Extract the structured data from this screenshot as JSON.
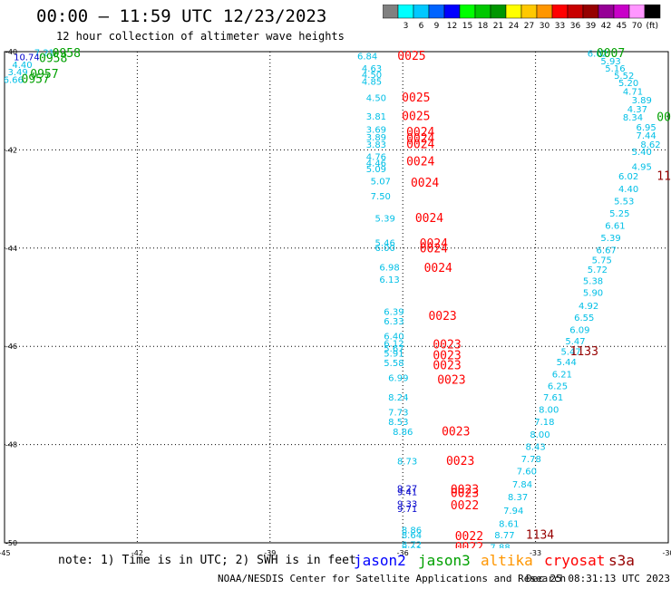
{
  "header": {
    "title": "00:00 — 11:59 UTC 12/23/2023",
    "subtitle": "12 hour collection of altimeter wave heights"
  },
  "colorbar": {
    "unit_label": "(ft)",
    "bins": [
      {
        "label": "",
        "color": "#808080"
      },
      {
        "label": "3",
        "color": "#00ffff"
      },
      {
        "label": "6",
        "color": "#00c8ff"
      },
      {
        "label": "9",
        "color": "#0064ff"
      },
      {
        "label": "12",
        "color": "#0000ff"
      },
      {
        "label": "15",
        "color": "#00ff00"
      },
      {
        "label": "18",
        "color": "#00c800"
      },
      {
        "label": "21",
        "color": "#009600"
      },
      {
        "label": "24",
        "color": "#ffff00"
      },
      {
        "label": "27",
        "color": "#ffc800"
      },
      {
        "label": "30",
        "color": "#ff9600"
      },
      {
        "label": "33",
        "color": "#ff0000"
      },
      {
        "label": "36",
        "color": "#c80000"
      },
      {
        "label": "39",
        "color": "#960000"
      },
      {
        "label": "42",
        "color": "#960096"
      },
      {
        "label": "45",
        "color": "#c800c8"
      },
      {
        "label": "70",
        "color": "#ff96ff"
      },
      {
        "label": "",
        "color": "#000000"
      }
    ]
  },
  "footer": {
    "note": "note: 1) Time is in UTC; 2) SWH is in feet",
    "satellites": [
      {
        "name": "jason2",
        "color": "#0000ff"
      },
      {
        "name": "jason3",
        "color": "#00a000"
      },
      {
        "name": "altika",
        "color": "#ff9600"
      },
      {
        "name": "cryosat",
        "color": "#ff0000"
      },
      {
        "name": "s3a",
        "color": "#960000"
      }
    ],
    "credit": "NOAA/NESDIS Center for Satellite Applications and Research",
    "timestamp": "Dec 25 08:31:13 UTC 2023"
  },
  "chart_data": {
    "type": "scatter",
    "xlim": [
      -45,
      -30
    ],
    "ylim": [
      -50,
      -40
    ],
    "x_ticks": [
      -45,
      -42,
      -39,
      -36,
      -33,
      -30
    ],
    "y_ticks": [
      -40,
      -42,
      -44,
      -46,
      -48,
      -50
    ],
    "grid": true,
    "colors": {
      "swh": "#00bfe6",
      "swh_dark": "#0000cc",
      "cryosat": "#ff0000",
      "jason3": "#00a000",
      "s3a": "#960000"
    },
    "wave_labels": [
      {
        "x": -44.1,
        "y": -40.03,
        "v": "7.21",
        "c": "swh"
      },
      {
        "x": -44.5,
        "y": -40.12,
        "v": "10.74",
        "c": "swh_dark"
      },
      {
        "x": -44.6,
        "y": -40.28,
        "v": "4.40",
        "c": "swh"
      },
      {
        "x": -44.7,
        "y": -40.42,
        "v": "3.49",
        "c": "swh"
      },
      {
        "x": -44.8,
        "y": -40.58,
        "v": "6.66",
        "c": "swh"
      },
      {
        "x": -36.8,
        "y": -40.1,
        "v": "6.84",
        "c": "swh"
      },
      {
        "x": -36.7,
        "y": -40.35,
        "v": "4.63",
        "c": "swh"
      },
      {
        "x": -36.7,
        "y": -40.48,
        "v": "4.50",
        "c": "swh"
      },
      {
        "x": -36.7,
        "y": -40.62,
        "v": "4.85",
        "c": "swh"
      },
      {
        "x": -36.6,
        "y": -40.95,
        "v": "4.50",
        "c": "swh"
      },
      {
        "x": -36.6,
        "y": -41.33,
        "v": "3.81",
        "c": "swh"
      },
      {
        "x": -36.6,
        "y": -41.6,
        "v": "3.69",
        "c": "swh"
      },
      {
        "x": -36.6,
        "y": -41.75,
        "v": "3.89",
        "c": "swh"
      },
      {
        "x": -36.6,
        "y": -41.9,
        "v": "3.83",
        "c": "swh"
      },
      {
        "x": -36.6,
        "y": -42.15,
        "v": "4.76",
        "c": "swh"
      },
      {
        "x": -36.6,
        "y": -42.28,
        "v": "4.46",
        "c": "swh"
      },
      {
        "x": -36.6,
        "y": -42.4,
        "v": "5.09",
        "c": "swh"
      },
      {
        "x": -36.5,
        "y": -42.65,
        "v": "5.07",
        "c": "swh"
      },
      {
        "x": -36.5,
        "y": -42.95,
        "v": "7.50",
        "c": "swh"
      },
      {
        "x": -36.4,
        "y": -43.4,
        "v": "5.39",
        "c": "swh"
      },
      {
        "x": -36.4,
        "y": -43.9,
        "v": "5.46",
        "c": "swh"
      },
      {
        "x": -36.4,
        "y": -44.0,
        "v": "6.00",
        "c": "swh"
      },
      {
        "x": -36.3,
        "y": -44.4,
        "v": "6.98",
        "c": "swh"
      },
      {
        "x": -36.3,
        "y": -44.65,
        "v": "6.13",
        "c": "swh"
      },
      {
        "x": -36.2,
        "y": -45.3,
        "v": "6.39",
        "c": "swh"
      },
      {
        "x": -36.2,
        "y": -45.5,
        "v": "6.33",
        "c": "swh"
      },
      {
        "x": -36.2,
        "y": -45.8,
        "v": "6.40",
        "c": "swh"
      },
      {
        "x": -36.2,
        "y": -45.95,
        "v": "6.12",
        "c": "swh"
      },
      {
        "x": -36.2,
        "y": -46.05,
        "v": "5.67",
        "c": "swh"
      },
      {
        "x": -36.2,
        "y": -46.15,
        "v": "5.91",
        "c": "swh"
      },
      {
        "x": -36.2,
        "y": -46.35,
        "v": "5.58",
        "c": "swh"
      },
      {
        "x": -36.1,
        "y": -46.65,
        "v": "6.99",
        "c": "swh"
      },
      {
        "x": -36.1,
        "y": -47.05,
        "v": "8.24",
        "c": "swh"
      },
      {
        "x": -36.1,
        "y": -47.35,
        "v": "7.73",
        "c": "swh"
      },
      {
        "x": -36.1,
        "y": -47.55,
        "v": "8.53",
        "c": "swh"
      },
      {
        "x": -36.0,
        "y": -47.75,
        "v": "8.86",
        "c": "swh"
      },
      {
        "x": -35.9,
        "y": -48.35,
        "v": "8.73",
        "c": "swh"
      },
      {
        "x": -35.9,
        "y": -48.9,
        "v": "9.27",
        "c": "swh_dark"
      },
      {
        "x": -35.9,
        "y": -48.98,
        "v": "9.41",
        "c": "swh_dark"
      },
      {
        "x": -35.9,
        "y": -49.22,
        "v": "9.33",
        "c": "swh_dark"
      },
      {
        "x": -35.9,
        "y": -49.32,
        "v": "9.71",
        "c": "swh_dark"
      },
      {
        "x": -35.8,
        "y": -49.75,
        "v": "8.86",
        "c": "swh"
      },
      {
        "x": -35.8,
        "y": -49.85,
        "v": "8.64",
        "c": "swh"
      },
      {
        "x": -35.8,
        "y": -50.05,
        "v": "8.72",
        "c": "swh"
      },
      {
        "x": -35.8,
        "y": -50.15,
        "v": "8.91",
        "c": "swh"
      },
      {
        "x": -35.8,
        "y": -50.28,
        "v": "9.01",
        "c": "swh_dark"
      },
      {
        "x": -31.6,
        "y": -40.05,
        "v": "6.02",
        "c": "swh"
      },
      {
        "x": -31.3,
        "y": -40.2,
        "v": "5.93",
        "c": "swh"
      },
      {
        "x": -31.2,
        "y": -40.35,
        "v": "5.16",
        "c": "swh"
      },
      {
        "x": -31.0,
        "y": -40.5,
        "v": "5.52",
        "c": "swh"
      },
      {
        "x": -30.9,
        "y": -40.65,
        "v": "5.20",
        "c": "swh"
      },
      {
        "x": -30.8,
        "y": -40.82,
        "v": "4.71",
        "c": "swh"
      },
      {
        "x": -30.6,
        "y": -41.0,
        "v": "3.89",
        "c": "swh"
      },
      {
        "x": -30.7,
        "y": -41.18,
        "v": "4.37",
        "c": "swh"
      },
      {
        "x": -30.8,
        "y": -41.35,
        "v": "8.34",
        "c": "swh"
      },
      {
        "x": -30.5,
        "y": -41.55,
        "v": "6.95",
        "c": "swh"
      },
      {
        "x": -30.5,
        "y": -41.72,
        "v": "7.44",
        "c": "swh"
      },
      {
        "x": -30.4,
        "y": -41.9,
        "v": "8.62",
        "c": "swh"
      },
      {
        "x": -30.6,
        "y": -42.05,
        "v": "5.40",
        "c": "swh"
      },
      {
        "x": -30.6,
        "y": -42.35,
        "v": "4.95",
        "c": "swh"
      },
      {
        "x": -30.9,
        "y": -42.55,
        "v": "6.02",
        "c": "swh"
      },
      {
        "x": -30.9,
        "y": -42.8,
        "v": "4.40",
        "c": "swh"
      },
      {
        "x": -31.0,
        "y": -43.05,
        "v": "5.53",
        "c": "swh"
      },
      {
        "x": -31.1,
        "y": -43.3,
        "v": "5.25",
        "c": "swh"
      },
      {
        "x": -31.2,
        "y": -43.55,
        "v": "6.61",
        "c": "swh"
      },
      {
        "x": -31.3,
        "y": -43.8,
        "v": "5.39",
        "c": "swh"
      },
      {
        "x": -31.4,
        "y": -44.05,
        "v": "6.67",
        "c": "swh"
      },
      {
        "x": -31.5,
        "y": -44.25,
        "v": "5.75",
        "c": "swh"
      },
      {
        "x": -31.6,
        "y": -44.45,
        "v": "5.72",
        "c": "swh"
      },
      {
        "x": -31.7,
        "y": -44.68,
        "v": "5.38",
        "c": "swh"
      },
      {
        "x": -31.7,
        "y": -44.92,
        "v": "5.90",
        "c": "swh"
      },
      {
        "x": -31.8,
        "y": -45.18,
        "v": "4.92",
        "c": "swh"
      },
      {
        "x": -31.9,
        "y": -45.42,
        "v": "6.55",
        "c": "swh"
      },
      {
        "x": -32.0,
        "y": -45.67,
        "v": "6.09",
        "c": "swh"
      },
      {
        "x": -32.1,
        "y": -45.9,
        "v": "5.47",
        "c": "swh"
      },
      {
        "x": -32.2,
        "y": -46.12,
        "v": "5.47",
        "c": "swh"
      },
      {
        "x": -32.3,
        "y": -46.33,
        "v": "5.44",
        "c": "swh"
      },
      {
        "x": -32.4,
        "y": -46.58,
        "v": "6.21",
        "c": "swh"
      },
      {
        "x": -32.5,
        "y": -46.82,
        "v": "6.25",
        "c": "swh"
      },
      {
        "x": -32.6,
        "y": -47.05,
        "v": "7.61",
        "c": "swh"
      },
      {
        "x": -32.7,
        "y": -47.3,
        "v": "8.00",
        "c": "swh"
      },
      {
        "x": -32.8,
        "y": -47.55,
        "v": "7.18",
        "c": "swh"
      },
      {
        "x": -32.9,
        "y": -47.8,
        "v": "8.00",
        "c": "swh"
      },
      {
        "x": -33.0,
        "y": -48.05,
        "v": "8.43",
        "c": "swh"
      },
      {
        "x": -33.1,
        "y": -48.3,
        "v": "7.78",
        "c": "swh"
      },
      {
        "x": -33.2,
        "y": -48.55,
        "v": "7.60",
        "c": "swh"
      },
      {
        "x": -33.3,
        "y": -48.82,
        "v": "7.84",
        "c": "swh"
      },
      {
        "x": -33.4,
        "y": -49.08,
        "v": "8.37",
        "c": "swh"
      },
      {
        "x": -33.5,
        "y": -49.35,
        "v": "7.94",
        "c": "swh"
      },
      {
        "x": -33.6,
        "y": -49.62,
        "v": "8.61",
        "c": "swh"
      },
      {
        "x": -33.7,
        "y": -49.85,
        "v": "8.77",
        "c": "swh"
      },
      {
        "x": -33.8,
        "y": -50.1,
        "v": "7.88",
        "c": "swh"
      }
    ],
    "pass_labels": [
      {
        "x": -43.6,
        "y": -40.05,
        "v": "0958",
        "c": "jason3"
      },
      {
        "x": -43.9,
        "y": -40.15,
        "v": "0958",
        "c": "jason3"
      },
      {
        "x": -44.1,
        "y": -40.47,
        "v": "0957",
        "c": "jason3"
      },
      {
        "x": -44.3,
        "y": -40.57,
        "v": "0957",
        "c": "jason3"
      },
      {
        "x": -35.8,
        "y": -40.1,
        "v": "0025",
        "c": "cryosat"
      },
      {
        "x": -35.7,
        "y": -40.95,
        "v": "0025",
        "c": "cryosat"
      },
      {
        "x": -35.7,
        "y": -41.33,
        "v": "0025",
        "c": "cryosat"
      },
      {
        "x": -35.6,
        "y": -41.65,
        "v": "0024",
        "c": "cryosat"
      },
      {
        "x": -35.6,
        "y": -41.78,
        "v": "0024",
        "c": "cryosat"
      },
      {
        "x": -35.6,
        "y": -41.9,
        "v": "0024",
        "c": "cryosat"
      },
      {
        "x": -35.6,
        "y": -42.25,
        "v": "0024",
        "c": "cryosat"
      },
      {
        "x": -35.5,
        "y": -42.68,
        "v": "0024",
        "c": "cryosat"
      },
      {
        "x": -35.4,
        "y": -43.4,
        "v": "0024",
        "c": "cryosat"
      },
      {
        "x": -35.3,
        "y": -43.92,
        "v": "0024",
        "c": "cryosat"
      },
      {
        "x": -35.3,
        "y": -44.02,
        "v": "0024",
        "c": "cryosat"
      },
      {
        "x": -35.2,
        "y": -44.42,
        "v": "0024",
        "c": "cryosat"
      },
      {
        "x": -35.1,
        "y": -45.4,
        "v": "0023",
        "c": "cryosat"
      },
      {
        "x": -35.0,
        "y": -45.98,
        "v": "0023",
        "c": "cryosat"
      },
      {
        "x": -35.0,
        "y": -46.2,
        "v": "0023",
        "c": "cryosat"
      },
      {
        "x": -35.0,
        "y": -46.4,
        "v": "0023",
        "c": "cryosat"
      },
      {
        "x": -34.9,
        "y": -46.7,
        "v": "0023",
        "c": "cryosat"
      },
      {
        "x": -34.8,
        "y": -47.75,
        "v": "0023",
        "c": "cryosat"
      },
      {
        "x": -34.7,
        "y": -48.35,
        "v": "0023",
        "c": "cryosat"
      },
      {
        "x": -34.6,
        "y": -48.93,
        "v": "0023",
        "c": "cryosat"
      },
      {
        "x": -34.6,
        "y": -49.0,
        "v": "0023",
        "c": "cryosat"
      },
      {
        "x": -34.6,
        "y": -49.25,
        "v": "0022",
        "c": "cryosat"
      },
      {
        "x": -34.5,
        "y": -49.88,
        "v": "0022",
        "c": "cryosat"
      },
      {
        "x": -34.5,
        "y": -50.1,
        "v": "0022",
        "c": "cryosat"
      },
      {
        "x": -34.5,
        "y": -50.3,
        "v": "0022",
        "c": "cryosat"
      },
      {
        "x": -31.3,
        "y": -40.05,
        "v": "0007",
        "c": "jason3"
      },
      {
        "x": -30.1,
        "y": -41.35,
        "v": "00",
        "c": "jason3"
      },
      {
        "x": -30.1,
        "y": -42.55,
        "v": "11",
        "c": "s3a"
      },
      {
        "x": -31.9,
        "y": -46.12,
        "v": "1133",
        "c": "s3a"
      },
      {
        "x": -32.9,
        "y": -49.85,
        "v": "1134",
        "c": "s3a"
      }
    ]
  }
}
